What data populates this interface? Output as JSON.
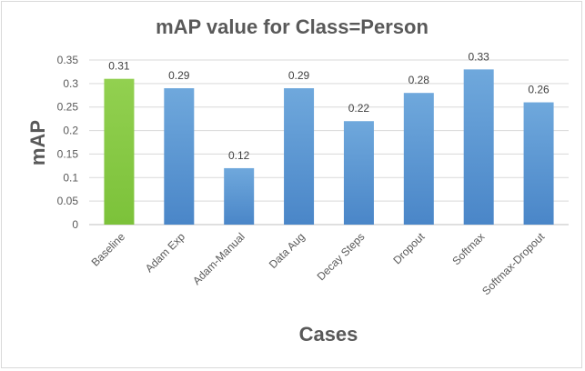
{
  "chart_data": {
    "type": "bar",
    "title": "mAP value for Class=Person",
    "xlabel": "Cases",
    "ylabel": "mAP",
    "categories": [
      "Baseline",
      "Adam Exp",
      "Adam-Manual",
      "Data Aug",
      "Decay Steps",
      "Dropout",
      "Softmax",
      "Softmax-Dropout"
    ],
    "values": [
      0.31,
      0.29,
      0.12,
      0.29,
      0.22,
      0.28,
      0.33,
      0.26
    ],
    "data_labels": [
      "0.31",
      "0.29",
      "0.12",
      "0.29",
      "0.22",
      "0.28",
      "0.33",
      "0.26"
    ],
    "ylim": [
      0,
      0.35
    ],
    "yticks": [
      0,
      0.05,
      0.1,
      0.15,
      0.2,
      0.25,
      0.3,
      0.35
    ],
    "ytick_labels": [
      "0",
      "0.05",
      "0.1",
      "0.15",
      "0.2",
      "0.25",
      "0.3",
      "0.35"
    ],
    "grid": true,
    "legend": "none",
    "colors": {
      "highlight_bar_top": "#92d050",
      "highlight_bar_bottom": "#7cc23a",
      "bar_top": "#6fa8dc",
      "bar_bottom": "#4a86c8"
    },
    "highlight_index": 0
  }
}
